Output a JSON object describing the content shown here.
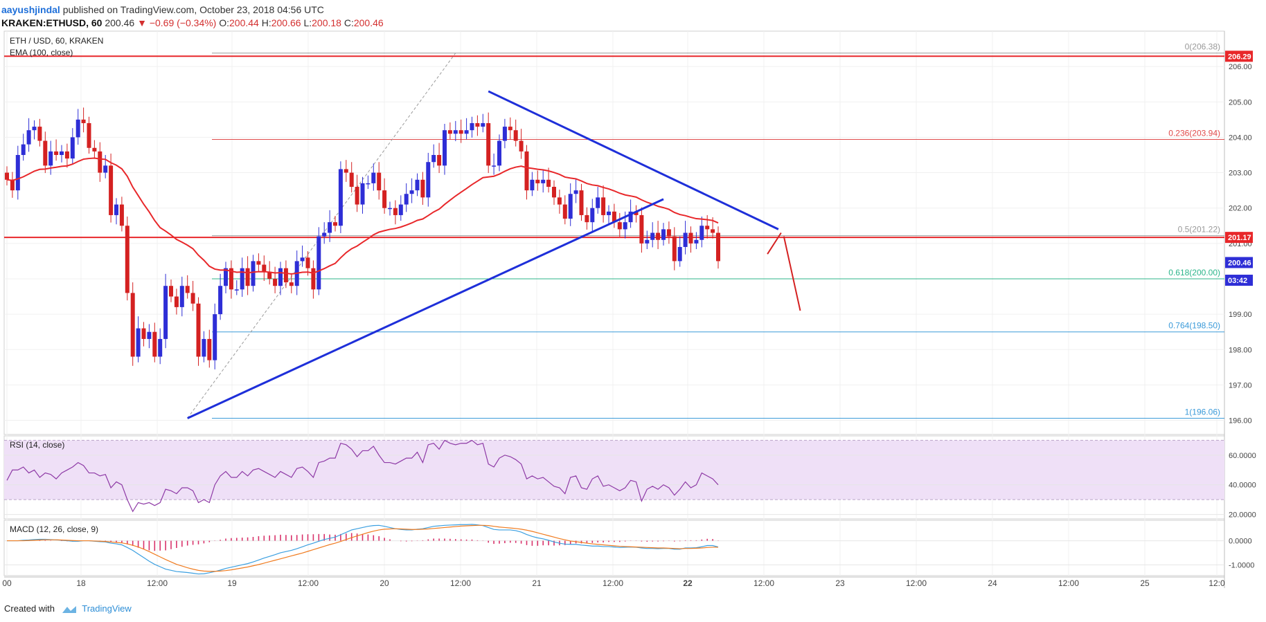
{
  "header": {
    "author": "aayushjindal",
    "published_text": "published on TradingView.com, October 23, 2018 04:56 UTC",
    "symbol": "KRAKEN:ETHUSD, 60",
    "last_price": "200.46",
    "change": "▼ −0.69 (−0.34%)",
    "o_label": "O:",
    "o_value": "200.44",
    "h_label": "H:",
    "h_value": "200.66",
    "l_label": "L:",
    "l_value": "200.18",
    "c_label": "C:",
    "c_value": "200.46"
  },
  "legend": {
    "title": "ETH / USD, 60, KRAKEN",
    "ema": "EMA (100, close)",
    "rsi": "RSI (14, close)",
    "macd": "MACD (12, 26, close, 9)"
  },
  "footer": {
    "created_with": "Created with",
    "brand": "TradingView"
  },
  "colors": {
    "up": "#2e2ed6",
    "down": "#d42121",
    "ema": "#e8272a",
    "trend": "#1e2fd9",
    "fib_red": "#e04a4a",
    "fib_green": "#2bb58a",
    "fib_blue": "#3a9ad9",
    "fib_grey": "#999999",
    "rsi_line": "#8e3aa6",
    "rsi_band": "#efe0f7",
    "macd_line": "#3a9fe0",
    "signal_line": "#f07b1f",
    "hist": "#d8326a"
  },
  "chart_data": [
    {
      "type": "candlestick",
      "title": "ETH / USD, 60, KRAKEN",
      "ylim": [
        195.6,
        207.0
      ],
      "y_ticks": [
        "196.00",
        "197.00",
        "198.00",
        "199.00",
        "200.00",
        "201.00",
        "202.00",
        "203.00",
        "204.00",
        "205.00",
        "206.00"
      ],
      "x_ticks": [
        "00",
        "18",
        "12:00",
        "19",
        "12:00",
        "20",
        "12:00",
        "21",
        "12:00",
        "22",
        "12:00",
        "23",
        "12:00",
        "24",
        "12:00",
        "25",
        "12:0"
      ],
      "bold_x_ticks": [
        "22"
      ],
      "price_tags": [
        {
          "label": "206.29",
          "value": 206.29,
          "color": "#e8272a"
        },
        {
          "label": "201.17",
          "value": 201.17,
          "color": "#e8272a"
        },
        {
          "label": "200.46",
          "value": 200.46,
          "color": "#2e2ed6"
        },
        {
          "label": "03:42",
          "value": 199.96,
          "color": "#2e2ed6"
        }
      ],
      "horizontal_lines": [
        206.29,
        201.17
      ],
      "fib_levels": [
        {
          "ratio": "0",
          "label": "0(206.38)",
          "value": 206.38,
          "color": "#999999"
        },
        {
          "ratio": "0.236",
          "label": "0.236(203.94)",
          "value": 203.94,
          "color": "#e04a4a"
        },
        {
          "ratio": "0.5",
          "label": "0.5(201.22)",
          "value": 201.22,
          "color": "#999999"
        },
        {
          "ratio": "0.618",
          "label": "0.618(200.00)",
          "value": 200.0,
          "color": "#2bb58a"
        },
        {
          "ratio": "0.764",
          "label": "0.764(198.50)",
          "value": 198.5,
          "color": "#3a9ad9"
        },
        {
          "ratio": "1",
          "label": "1(196.06)",
          "value": 196.06,
          "color": "#3a9ad9"
        }
      ],
      "candles_close": [
        202.8,
        202.5,
        203.5,
        203.8,
        204.2,
        204.3,
        203.9,
        203.2,
        203.6,
        203.5,
        203.6,
        203.4,
        204.0,
        204.5,
        204.4,
        203.7,
        203.6,
        203.0,
        203.2,
        201.8,
        202.1,
        201.5,
        199.6,
        197.8,
        198.6,
        198.3,
        198.5,
        197.8,
        198.3,
        199.8,
        199.5,
        199.2,
        199.8,
        199.6,
        199.3,
        197.8,
        198.3,
        197.7,
        199.0,
        199.8,
        200.3,
        199.7,
        199.7,
        200.3,
        199.8,
        200.5,
        200.4,
        200.2,
        200.0,
        199.8,
        200.3,
        199.9,
        199.8,
        200.5,
        200.6,
        200.3,
        199.7,
        201.2,
        201.3,
        201.6,
        201.5,
        203.1,
        203.0,
        202.6,
        202.1,
        202.7,
        202.7,
        203.0,
        202.5,
        202.0,
        202.0,
        201.8,
        202.1,
        202.4,
        202.5,
        202.8,
        202.3,
        203.3,
        203.5,
        203.2,
        204.2,
        204.1,
        204.2,
        204.1,
        204.2,
        204.4,
        204.3,
        204.4,
        203.2,
        203.2,
        203.9,
        204.3,
        204.2,
        203.9,
        203.6,
        202.5,
        202.8,
        202.7,
        202.8,
        202.6,
        202.3,
        202.1,
        201.7,
        202.4,
        202.5,
        201.8,
        201.6,
        202.0,
        202.3,
        201.8,
        201.9,
        201.6,
        201.4,
        201.6,
        201.9,
        201.8,
        201.0,
        201.1,
        201.3,
        201.1,
        201.4,
        201.2,
        200.5,
        200.9,
        201.3,
        201.0,
        201.1,
        201.5,
        201.4,
        201.3,
        200.5
      ]
    },
    {
      "type": "line",
      "title": "RSI (14, close)",
      "ylim": [
        17,
        73
      ],
      "y_ticks": [
        "20.0000",
        "40.0000",
        "60.0000"
      ],
      "band": [
        30,
        70
      ],
      "series": [
        {
          "name": "RSI (14, close)",
          "values": [
            43,
            50,
            50,
            52,
            48,
            50,
            45,
            48,
            47,
            44,
            48,
            50,
            52,
            55,
            53,
            48,
            48,
            46,
            47,
            38,
            42,
            40,
            30,
            22,
            28,
            27,
            28,
            26,
            28,
            37,
            36,
            34,
            38,
            38,
            36,
            28,
            30,
            28,
            40,
            46,
            49,
            45,
            45,
            49,
            46,
            50,
            51,
            49,
            47,
            45,
            49,
            47,
            45,
            51,
            52,
            49,
            45,
            55,
            56,
            58,
            58,
            68,
            67,
            64,
            59,
            63,
            63,
            66,
            60,
            55,
            55,
            54,
            56,
            58,
            58,
            62,
            55,
            67,
            68,
            64,
            70,
            68,
            67,
            68,
            68,
            70,
            67,
            68,
            54,
            52,
            58,
            60,
            59,
            57,
            54,
            44,
            46,
            44,
            45,
            42,
            39,
            38,
            34,
            45,
            46,
            38,
            37,
            44,
            46,
            39,
            40,
            38,
            36,
            38,
            43,
            42,
            29,
            37,
            39,
            37,
            40,
            38,
            33,
            37,
            42,
            38,
            40,
            48,
            46,
            44,
            40
          ]
        }
      ]
    },
    {
      "type": "line",
      "title": "MACD (12, 26, close, 9)",
      "ylim": [
        -1.45,
        0.85
      ],
      "y_ticks": [
        "-1.0000",
        "0.0000"
      ],
      "series": [
        {
          "name": "MACD",
          "values": [
            0.0,
            0.0,
            0.0,
            0.02,
            0.03,
            0.05,
            0.06,
            0.06,
            0.05,
            0.04,
            0.02,
            0.0,
            -0.02,
            -0.02,
            0.0,
            0.0,
            -0.02,
            -0.04,
            -0.05,
            -0.1,
            -0.13,
            -0.17,
            -0.28,
            -0.4,
            -0.55,
            -0.7,
            -0.85,
            -0.98,
            -1.08,
            -1.18,
            -1.23,
            -1.28,
            -1.3,
            -1.32,
            -1.35,
            -1.38,
            -1.37,
            -1.33,
            -1.28,
            -1.22,
            -1.15,
            -1.1,
            -1.05,
            -1.0,
            -0.95,
            -0.88,
            -0.8,
            -0.72,
            -0.65,
            -0.58,
            -0.5,
            -0.45,
            -0.4,
            -0.33,
            -0.25,
            -0.17,
            -0.1,
            -0.02,
            0.05,
            0.1,
            0.15,
            0.25,
            0.35,
            0.45,
            0.5,
            0.55,
            0.6,
            0.63,
            0.64,
            0.6,
            0.55,
            0.5,
            0.47,
            0.45,
            0.45,
            0.48,
            0.5,
            0.55,
            0.6,
            0.62,
            0.64,
            0.65,
            0.66,
            0.67,
            0.67,
            0.68,
            0.66,
            0.63,
            0.55,
            0.47,
            0.45,
            0.45,
            0.45,
            0.42,
            0.36,
            0.26,
            0.18,
            0.12,
            0.08,
            0.02,
            -0.05,
            -0.1,
            -0.14,
            -0.15,
            -0.15,
            -0.18,
            -0.2,
            -0.22,
            -0.22,
            -0.24,
            -0.24,
            -0.26,
            -0.28,
            -0.27,
            -0.26,
            -0.27,
            -0.3,
            -0.32,
            -0.32,
            -0.33,
            -0.32,
            -0.32,
            -0.35,
            -0.35,
            -0.3,
            -0.3,
            -0.29,
            -0.25,
            -0.2,
            -0.2,
            -0.26
          ]
        },
        {
          "name": "Signal",
          "values": [
            0.0,
            0.0,
            0.0,
            0.0,
            0.01,
            0.02,
            0.03,
            0.04,
            0.04,
            0.04,
            0.03,
            0.02,
            0.01,
            0.0,
            0.0,
            0.0,
            -0.01,
            -0.02,
            -0.03,
            -0.05,
            -0.07,
            -0.09,
            -0.13,
            -0.19,
            -0.26,
            -0.35,
            -0.45,
            -0.56,
            -0.67,
            -0.78,
            -0.88,
            -0.98,
            -1.05,
            -1.12,
            -1.18,
            -1.23,
            -1.26,
            -1.27,
            -1.27,
            -1.26,
            -1.24,
            -1.21,
            -1.17,
            -1.13,
            -1.09,
            -1.04,
            -0.99,
            -0.93,
            -0.87,
            -0.81,
            -0.75,
            -0.69,
            -0.63,
            -0.57,
            -0.51,
            -0.44,
            -0.37,
            -0.3,
            -0.23,
            -0.16,
            -0.1,
            -0.03,
            0.05,
            0.13,
            0.2,
            0.27,
            0.34,
            0.4,
            0.45,
            0.48,
            0.49,
            0.5,
            0.49,
            0.48,
            0.47,
            0.47,
            0.48,
            0.49,
            0.51,
            0.53,
            0.55,
            0.57,
            0.59,
            0.61,
            0.62,
            0.63,
            0.64,
            0.64,
            0.63,
            0.6,
            0.57,
            0.55,
            0.53,
            0.51,
            0.48,
            0.44,
            0.39,
            0.33,
            0.27,
            0.21,
            0.15,
            0.09,
            0.04,
            -0.01,
            -0.04,
            -0.07,
            -0.1,
            -0.13,
            -0.15,
            -0.17,
            -0.19,
            -0.21,
            -0.23,
            -0.24,
            -0.25,
            -0.26,
            -0.27,
            -0.28,
            -0.29,
            -0.3,
            -0.3,
            -0.31,
            -0.32,
            -0.33,
            -0.32,
            -0.32,
            -0.31,
            -0.3,
            -0.28,
            -0.27,
            -0.27
          ]
        }
      ]
    }
  ]
}
